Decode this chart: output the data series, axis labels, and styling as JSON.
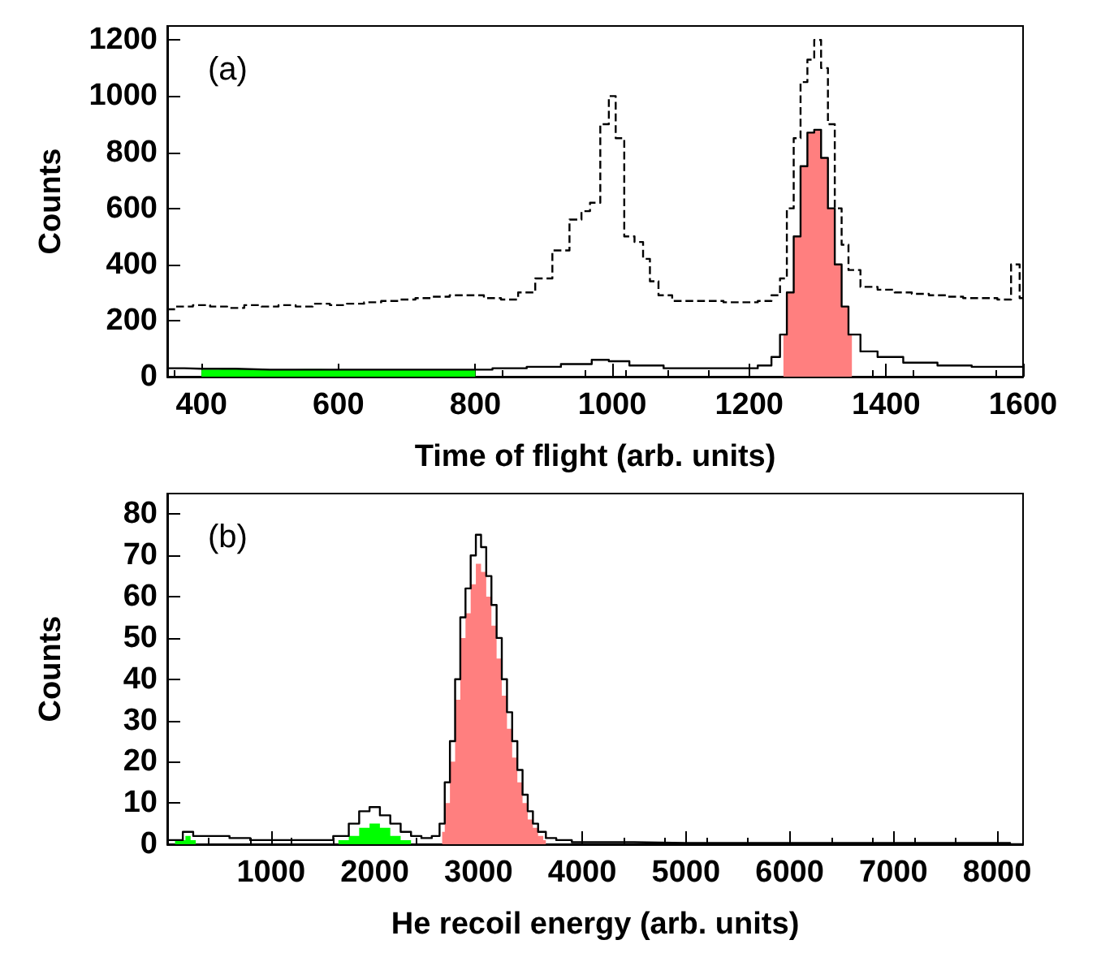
{
  "chart_data": [
    {
      "type": "step",
      "xlabel": "Time of flight (arb. units)",
      "ylabel": "Counts",
      "xlim": [
        350,
        1600
      ],
      "xticks": [
        400,
        600,
        800,
        1000,
        1200,
        1400,
        1600
      ],
      "ylim": [
        0,
        1250
      ],
      "yticks": [
        0,
        200,
        400,
        600,
        800,
        1000,
        1200
      ],
      "grid": false,
      "annotations": [
        "(a)"
      ],
      "series": [
        {
          "type": "area",
          "color": "#00ff00",
          "x": [
            400,
            450,
            500,
            550,
            600,
            650,
            700,
            750,
            800
          ],
          "values": [
            25,
            28,
            25,
            27,
            25,
            26,
            25,
            26,
            25
          ]
        },
        {
          "type": "area",
          "color": "#ff7f7f",
          "x": [
            1250,
            1260,
            1270,
            1280,
            1290,
            1300,
            1310,
            1320,
            1330,
            1340,
            1350
          ],
          "values": [
            150,
            300,
            500,
            750,
            870,
            880,
            780,
            600,
            400,
            250,
            150
          ]
        },
        {
          "color": "#000000",
          "line_style": "dashed",
          "x": [
            350,
            375,
            400,
            425,
            450,
            475,
            500,
            525,
            550,
            575,
            600,
            625,
            650,
            675,
            700,
            725,
            750,
            775,
            800,
            825,
            850,
            875,
            900,
            925,
            950,
            960,
            975,
            990,
            1000,
            1010,
            1025,
            1040,
            1050,
            1060,
            1075,
            1100,
            1125,
            1150,
            1175,
            1200,
            1225,
            1240,
            1250,
            1260,
            1270,
            1280,
            1290,
            1300,
            1310,
            1320,
            1330,
            1340,
            1350,
            1375,
            1400,
            1425,
            1450,
            1475,
            1500,
            1525,
            1550,
            1575,
            1590,
            1600
          ],
          "values": [
            240,
            250,
            255,
            250,
            245,
            255,
            250,
            255,
            250,
            260,
            255,
            260,
            265,
            270,
            275,
            280,
            285,
            290,
            290,
            280,
            275,
            300,
            350,
            450,
            560,
            590,
            620,
            900,
            1000,
            850,
            500,
            480,
            420,
            340,
            290,
            270,
            270,
            270,
            265,
            265,
            270,
            290,
            350,
            600,
            850,
            1050,
            1130,
            1200,
            1100,
            900,
            600,
            470,
            380,
            320,
            310,
            300,
            295,
            290,
            285,
            280,
            280,
            275,
            400,
            280
          ]
        },
        {
          "color": "#000000",
          "line_style": "solid",
          "x": [
            350,
            400,
            500,
            600,
            700,
            800,
            850,
            900,
            950,
            990,
            1000,
            1050,
            1100,
            1150,
            1200,
            1225,
            1240,
            1250,
            1260,
            1270,
            1280,
            1290,
            1300,
            1310,
            1320,
            1330,
            1340,
            1350,
            1375,
            1400,
            1450,
            1500,
            1550,
            1600
          ],
          "values": [
            30,
            28,
            25,
            25,
            25,
            25,
            30,
            35,
            45,
            60,
            55,
            40,
            30,
            30,
            30,
            40,
            70,
            150,
            300,
            500,
            750,
            870,
            880,
            780,
            600,
            400,
            250,
            150,
            90,
            70,
            50,
            40,
            35,
            35
          ]
        }
      ]
    },
    {
      "type": "step",
      "xlabel": "He recoil energy (arb. units)",
      "ylabel": "Counts",
      "xlim": [
        0,
        8250
      ],
      "xticks": [
        1000,
        2000,
        3000,
        4000,
        5000,
        6000,
        7000,
        8000
      ],
      "ylim": [
        0,
        85
      ],
      "yticks": [
        0,
        10,
        20,
        30,
        40,
        50,
        60,
        70,
        80
      ],
      "grid": false,
      "annotations": [
        "(b)"
      ],
      "series": [
        {
          "type": "area",
          "color": "#ff7f7f",
          "x": [
            2650,
            2700,
            2750,
            2800,
            2850,
            2900,
            2950,
            3000,
            3050,
            3100,
            3150,
            3200,
            3250,
            3300,
            3350,
            3400,
            3450,
            3500,
            3550,
            3600,
            3650
          ],
          "values": [
            3,
            10,
            20,
            35,
            50,
            56,
            63,
            68,
            66,
            60,
            53,
            45,
            36,
            28,
            21,
            15,
            10,
            6,
            4,
            2,
            1
          ]
        },
        {
          "color": "#000000",
          "x": [
            0,
            100,
            200,
            300,
            500,
            700,
            900,
            1100,
            1300,
            1500,
            1700,
            1800,
            1900,
            2000,
            2100,
            2200,
            2300,
            2400,
            2500,
            2600,
            2650,
            2700,
            2750,
            2800,
            2850,
            2900,
            2950,
            3000,
            3050,
            3100,
            3150,
            3200,
            3250,
            3300,
            3350,
            3400,
            3450,
            3500,
            3550,
            3600,
            3700,
            3800,
            4000,
            5000,
            6000,
            7000,
            8000,
            8250
          ],
          "values": [
            1,
            1,
            3,
            2,
            2,
            1.5,
            1,
            1,
            1,
            1,
            2,
            5,
            8,
            9,
            7,
            5,
            3,
            2,
            1.5,
            2,
            5,
            15,
            25,
            40,
            55,
            62,
            70,
            75,
            72,
            65,
            58,
            50,
            40,
            32,
            25,
            18,
            12,
            8,
            5,
            3,
            1.5,
            1,
            0.5,
            0.3,
            0.3,
            0.3,
            0.3,
            0
          ]
        },
        {
          "type": "area",
          "color": "#00ff00",
          "x": [
            0,
            150,
            200,
            250,
            300,
            1600,
            1700,
            1800,
            1900,
            2000,
            2100,
            2200,
            2300,
            2400,
            8250
          ],
          "values": [
            0,
            1,
            2,
            1,
            0,
            0,
            1,
            2,
            4,
            5,
            4,
            2,
            1,
            0,
            0
          ]
        }
      ]
    }
  ]
}
